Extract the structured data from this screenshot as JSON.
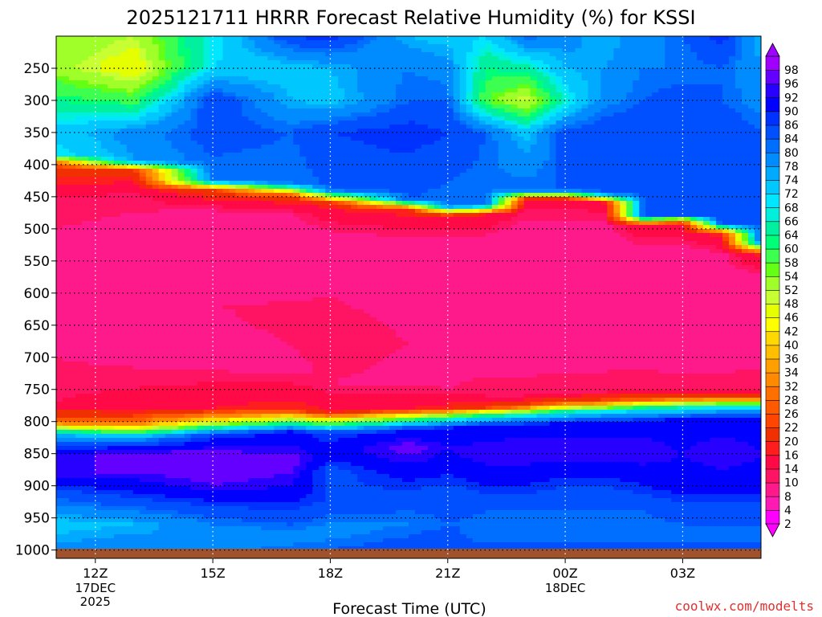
{
  "chart_data": {
    "type": "heatmap",
    "title": "2025121711 HRRR Forecast Relative Humidity (%) for KSSI",
    "xlabel": "Forecast Time (UTC)",
    "ylabel": "",
    "credit": "coolwx.com/modelts",
    "x_ticks": [
      {
        "label": "12Z",
        "sub": [
          "17DEC",
          "2025"
        ],
        "hour": 0
      },
      {
        "label": "15Z",
        "sub": [],
        "hour": 3
      },
      {
        "label": "18Z",
        "sub": [],
        "hour": 6
      },
      {
        "label": "21Z",
        "sub": [],
        "hour": 9
      },
      {
        "label": "00Z",
        "sub": [
          "18DEC"
        ],
        "hour": 12
      },
      {
        "label": "03Z",
        "sub": [],
        "hour": 15
      }
    ],
    "x_range_hours": [
      -1,
      17
    ],
    "y_axis": "pressure (hPa), reversed",
    "y_ticks": [
      250,
      300,
      350,
      400,
      450,
      500,
      550,
      600,
      650,
      700,
      750,
      800,
      850,
      900,
      950,
      1000
    ],
    "y_range": [
      200,
      1013
    ],
    "colorbar_levels": [
      2,
      4,
      8,
      10,
      14,
      16,
      20,
      22,
      26,
      28,
      32,
      34,
      36,
      40,
      42,
      46,
      48,
      52,
      54,
      58,
      60,
      64,
      66,
      68,
      72,
      74,
      78,
      80,
      84,
      86,
      90,
      92,
      96,
      98
    ],
    "colorbar_colors": [
      "#ff00ff",
      "#ff1ab4",
      "#ff1a8c",
      "#ff1464",
      "#ff0a46",
      "#ff1e1e",
      "#f03000",
      "#ff4600",
      "#ff5a00",
      "#ff7000",
      "#ff8a00",
      "#ffa000",
      "#ffbf00",
      "#ffd800",
      "#ffff00",
      "#e6ff00",
      "#c8ff32",
      "#a0ff28",
      "#64ff14",
      "#3cff50",
      "#00ff78",
      "#00f0a0",
      "#00f0dc",
      "#00e6ff",
      "#00c8ff",
      "#00aaff",
      "#008cff",
      "#006eff",
      "#0050ff",
      "#0032ff",
      "#0000ff",
      "#2800ff",
      "#6400ff",
      "#a000ff"
    ],
    "surface_color": "#a0522d",
    "series": [
      {
        "hour": -1,
        "rh": [
          [
            200,
            52
          ],
          [
            250,
            50
          ],
          [
            300,
            60
          ],
          [
            350,
            70
          ],
          [
            385,
            66
          ],
          [
            400,
            20
          ],
          [
            450,
            10
          ],
          [
            500,
            8
          ],
          [
            600,
            6
          ],
          [
            700,
            8
          ],
          [
            770,
            10
          ],
          [
            800,
            24
          ],
          [
            820,
            72
          ],
          [
            850,
            90
          ],
          [
            880,
            92
          ],
          [
            920,
            80
          ],
          [
            960,
            70
          ],
          [
            990,
            74
          ],
          [
            1013,
            78
          ]
        ]
      },
      {
        "hour": 1,
        "rh": [
          [
            200,
            48
          ],
          [
            250,
            42
          ],
          [
            300,
            56
          ],
          [
            350,
            76
          ],
          [
            395,
            74
          ],
          [
            410,
            18
          ],
          [
            450,
            9
          ],
          [
            520,
            6
          ],
          [
            600,
            8
          ],
          [
            700,
            7
          ],
          [
            780,
            12
          ],
          [
            805,
            30
          ],
          [
            825,
            74
          ],
          [
            850,
            94
          ],
          [
            880,
            92
          ],
          [
            920,
            84
          ],
          [
            960,
            72
          ],
          [
            990,
            76
          ],
          [
            1013,
            80
          ]
        ]
      },
      {
        "hour": 3,
        "rh": [
          [
            200,
            66
          ],
          [
            250,
            68
          ],
          [
            300,
            84
          ],
          [
            350,
            82
          ],
          [
            425,
            78
          ],
          [
            440,
            20
          ],
          [
            470,
            8
          ],
          [
            540,
            4
          ],
          [
            620,
            8
          ],
          [
            700,
            6
          ],
          [
            780,
            14
          ],
          [
            800,
            42
          ],
          [
            820,
            84
          ],
          [
            860,
            96
          ],
          [
            900,
            92
          ],
          [
            940,
            82
          ],
          [
            980,
            74
          ],
          [
            1013,
            78
          ]
        ]
      },
      {
        "hour": 5,
        "rh": [
          [
            200,
            84
          ],
          [
            250,
            70
          ],
          [
            300,
            72
          ],
          [
            350,
            80
          ],
          [
            430,
            78
          ],
          [
            450,
            18
          ],
          [
            480,
            7
          ],
          [
            560,
            6
          ],
          [
            640,
            9
          ],
          [
            720,
            7
          ],
          [
            780,
            16
          ],
          [
            798,
            50
          ],
          [
            815,
            86
          ],
          [
            860,
            94
          ],
          [
            900,
            90
          ],
          [
            940,
            84
          ],
          [
            980,
            76
          ],
          [
            1013,
            82
          ]
        ]
      },
      {
        "hour": 6,
        "rh": [
          [
            200,
            86
          ],
          [
            250,
            72
          ],
          [
            300,
            70
          ],
          [
            350,
            84
          ],
          [
            440,
            80
          ],
          [
            460,
            16
          ],
          [
            500,
            8
          ],
          [
            580,
            7
          ],
          [
            660,
            10
          ],
          [
            740,
            8
          ],
          [
            785,
            14
          ],
          [
            800,
            48
          ],
          [
            818,
            84
          ],
          [
            850,
            88
          ],
          [
            880,
            82
          ],
          [
            920,
            84
          ],
          [
            970,
            76
          ],
          [
            1013,
            82
          ]
        ]
      },
      {
        "hour": 8,
        "rh": [
          [
            200,
            72
          ],
          [
            250,
            78
          ],
          [
            300,
            80
          ],
          [
            350,
            86
          ],
          [
            455,
            80
          ],
          [
            470,
            16
          ],
          [
            510,
            8
          ],
          [
            600,
            6
          ],
          [
            680,
            8
          ],
          [
            740,
            7
          ],
          [
            780,
            14
          ],
          [
            795,
            52
          ],
          [
            812,
            86
          ],
          [
            840,
            94
          ],
          [
            880,
            88
          ],
          [
            920,
            82
          ],
          [
            960,
            78
          ],
          [
            1013,
            84
          ]
        ]
      },
      {
        "hour": 9,
        "rh": [
          [
            200,
            70
          ],
          [
            250,
            76
          ],
          [
            300,
            80
          ],
          [
            350,
            84
          ],
          [
            465,
            78
          ],
          [
            480,
            14
          ],
          [
            520,
            7
          ],
          [
            600,
            6
          ],
          [
            680,
            6
          ],
          [
            750,
            8
          ],
          [
            780,
            16
          ],
          [
            792,
            56
          ],
          [
            810,
            86
          ],
          [
            840,
            90
          ],
          [
            870,
            88
          ],
          [
            910,
            82
          ],
          [
            960,
            80
          ],
          [
            1013,
            84
          ]
        ]
      },
      {
        "hour": 10,
        "rh": [
          [
            200,
            68
          ],
          [
            250,
            60
          ],
          [
            300,
            54
          ],
          [
            350,
            80
          ],
          [
            462,
            78
          ],
          [
            478,
            14
          ],
          [
            520,
            6
          ],
          [
            620,
            4
          ],
          [
            700,
            6
          ],
          [
            760,
            10
          ],
          [
            778,
            18
          ],
          [
            790,
            60
          ],
          [
            808,
            88
          ],
          [
            850,
            92
          ],
          [
            900,
            86
          ],
          [
            940,
            80
          ],
          [
            980,
            78
          ],
          [
            1013,
            84
          ]
        ]
      },
      {
        "hour": 11,
        "rh": [
          [
            200,
            80
          ],
          [
            250,
            62
          ],
          [
            300,
            46
          ],
          [
            350,
            70
          ],
          [
            440,
            80
          ],
          [
            455,
            12
          ],
          [
            500,
            6
          ],
          [
            610,
            5
          ],
          [
            700,
            6
          ],
          [
            760,
            10
          ],
          [
            775,
            20
          ],
          [
            788,
            62
          ],
          [
            806,
            88
          ],
          [
            850,
            92
          ],
          [
            900,
            86
          ],
          [
            940,
            80
          ],
          [
            980,
            78
          ],
          [
            1013,
            84
          ]
        ]
      },
      {
        "hour": 12,
        "rh": [
          [
            200,
            76
          ],
          [
            250,
            72
          ],
          [
            300,
            64
          ],
          [
            350,
            82
          ],
          [
            440,
            80
          ],
          [
            455,
            12
          ],
          [
            500,
            6
          ],
          [
            600,
            4
          ],
          [
            690,
            6
          ],
          [
            755,
            10
          ],
          [
            770,
            22
          ],
          [
            785,
            64
          ],
          [
            804,
            88
          ],
          [
            850,
            92
          ],
          [
            900,
            84
          ],
          [
            940,
            80
          ],
          [
            980,
            78
          ],
          [
            1013,
            84
          ]
        ]
      },
      {
        "hour": 13,
        "rh": [
          [
            200,
            72
          ],
          [
            250,
            74
          ],
          [
            300,
            76
          ],
          [
            350,
            84
          ],
          [
            445,
            80
          ],
          [
            460,
            12
          ],
          [
            500,
            6
          ],
          [
            600,
            6
          ],
          [
            690,
            6
          ],
          [
            755,
            10
          ],
          [
            768,
            22
          ],
          [
            783,
            64
          ],
          [
            802,
            88
          ],
          [
            850,
            92
          ],
          [
            900,
            84
          ],
          [
            940,
            80
          ],
          [
            980,
            78
          ],
          [
            1013,
            84
          ]
        ]
      },
      {
        "hour": 14,
        "rh": [
          [
            200,
            76
          ],
          [
            250,
            78
          ],
          [
            300,
            80
          ],
          [
            350,
            84
          ],
          [
            480,
            80
          ],
          [
            495,
            14
          ],
          [
            530,
            7
          ],
          [
            610,
            6
          ],
          [
            690,
            6
          ],
          [
            750,
            10
          ],
          [
            765,
            22
          ],
          [
            780,
            64
          ],
          [
            800,
            88
          ],
          [
            850,
            92
          ],
          [
            900,
            86
          ],
          [
            940,
            80
          ],
          [
            980,
            78
          ],
          [
            1013,
            84
          ]
        ]
      },
      {
        "hour": 15,
        "rh": [
          [
            200,
            80
          ],
          [
            250,
            78
          ],
          [
            300,
            82
          ],
          [
            350,
            84
          ],
          [
            478,
            82
          ],
          [
            492,
            14
          ],
          [
            530,
            7
          ],
          [
            620,
            6
          ],
          [
            700,
            6
          ],
          [
            750,
            10
          ],
          [
            763,
            22
          ],
          [
            778,
            64
          ],
          [
            798,
            88
          ],
          [
            850,
            90
          ],
          [
            900,
            88
          ],
          [
            940,
            82
          ],
          [
            980,
            78
          ],
          [
            1013,
            84
          ]
        ]
      },
      {
        "hour": 16,
        "rh": [
          [
            200,
            86
          ],
          [
            250,
            80
          ],
          [
            300,
            80
          ],
          [
            350,
            84
          ],
          [
            492,
            82
          ],
          [
            508,
            16
          ],
          [
            540,
            7
          ],
          [
            640,
            4
          ],
          [
            700,
            6
          ],
          [
            750,
            10
          ],
          [
            762,
            22
          ],
          [
            776,
            64
          ],
          [
            796,
            88
          ],
          [
            850,
            92
          ],
          [
            900,
            88
          ],
          [
            940,
            82
          ],
          [
            980,
            78
          ],
          [
            1013,
            84
          ]
        ]
      },
      {
        "hour": 17,
        "rh": [
          [
            200,
            72
          ],
          [
            250,
            74
          ],
          [
            300,
            76
          ],
          [
            350,
            80
          ],
          [
            520,
            80
          ],
          [
            540,
            16
          ],
          [
            570,
            8
          ],
          [
            640,
            6
          ],
          [
            700,
            7
          ],
          [
            750,
            10
          ],
          [
            762,
            22
          ],
          [
            776,
            64
          ],
          [
            796,
            88
          ],
          [
            850,
            90
          ],
          [
            900,
            88
          ],
          [
            940,
            82
          ],
          [
            980,
            78
          ],
          [
            1013,
            84
          ]
        ]
      }
    ]
  }
}
